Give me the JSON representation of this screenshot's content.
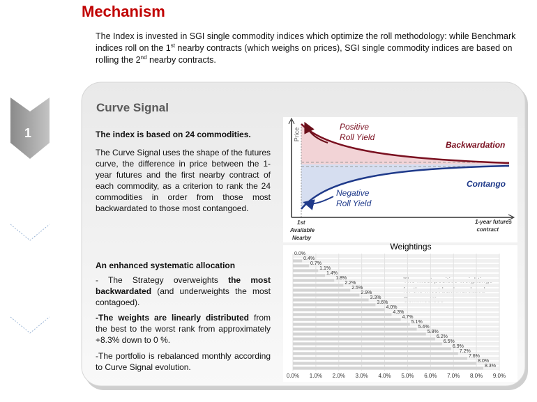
{
  "header": {
    "title": "Mechanism"
  },
  "intro": [
    "The Index is invested in SGI single commodity indices which optimize the roll methodology: while Benchmark indices roll on the 1",
    "st",
    " nearby contracts (which weighs on prices), SGI single commodity indices are based on rolling the 2",
    "nd",
    " nearby contracts."
  ],
  "step": {
    "number": "1"
  },
  "curve_signal": {
    "title": "Curve Signal",
    "lead": "The index is based on 24 commodities.",
    "description": "The Curve Signal uses the shape of the futures curve, the difference in price between the 1-year futures and the first nearby contract of each commodity, as a criterion to rank the 24 commodities in order from those most backwardated to those most contangoed.",
    "allocation_title": "An enhanced systematic allocation",
    "bullets": [
      [
        "- The Strategy overweights ",
        "the most backwardated",
        " (and underweights the most contagoed)."
      ],
      [
        "-The weights are linearly distributed",
        " from the best to the worst rank from approximately +8.3% down to 0 %."
      ],
      [
        "-The portfolio is rebalanced monthly according to Curve Signal evolution."
      ]
    ]
  },
  "diagram": {
    "y_axis_label": "Price",
    "positive": [
      "Positive",
      "Roll Yield"
    ],
    "backwardation": "Backwardation",
    "negative": [
      "Negative",
      "Roll Yield"
    ],
    "contango": "Contango",
    "nearby": [
      "1st",
      "Available",
      "Nearby"
    ],
    "one_year": [
      "1-year futures",
      "contract"
    ]
  },
  "chart_data": {
    "type": "bar",
    "orientation": "horizontal",
    "title": "Weightings",
    "annotation": [
      "The most positive weightings",
      "for the most backwardated",
      "Commodities"
    ],
    "values": [
      0.0,
      0.4,
      0.7,
      1.1,
      1.4,
      1.8,
      2.2,
      2.5,
      2.9,
      3.3,
      3.6,
      4.0,
      4.3,
      4.7,
      5.1,
      5.4,
      5.8,
      6.2,
      6.5,
      6.9,
      7.2,
      7.6,
      8.0,
      8.3
    ],
    "value_labels": [
      "0.0%",
      "0.4%",
      "0.7%",
      "1.1%",
      "1.4%",
      "1.8%",
      "2.2%",
      "2.5%",
      "2.9%",
      "3.3%",
      "3.6%",
      "4.0%",
      "4.3%",
      "4.7%",
      "5.1%",
      "5.4%",
      "5.8%",
      "6.2%",
      "6.5%",
      "6.9%",
      "7.2%",
      "7.6%",
      "8.0%",
      "8.3%"
    ],
    "color": "#d4d4d4",
    "xlim": [
      0,
      9
    ],
    "xticks": [
      {
        "value": 0,
        "label": "0.0%"
      },
      {
        "value": 1,
        "label": "1.0%"
      },
      {
        "value": 2,
        "label": "2.0%"
      },
      {
        "value": 3,
        "label": "3.0%"
      },
      {
        "value": 4,
        "label": "4.0%"
      },
      {
        "value": 5,
        "label": "5.0%"
      },
      {
        "value": 6,
        "label": "6.0%"
      },
      {
        "value": 7,
        "label": "7.0%"
      },
      {
        "value": 8,
        "label": "8.0%"
      },
      {
        "value": 9,
        "label": "9.0%"
      }
    ],
    "grid": true
  }
}
